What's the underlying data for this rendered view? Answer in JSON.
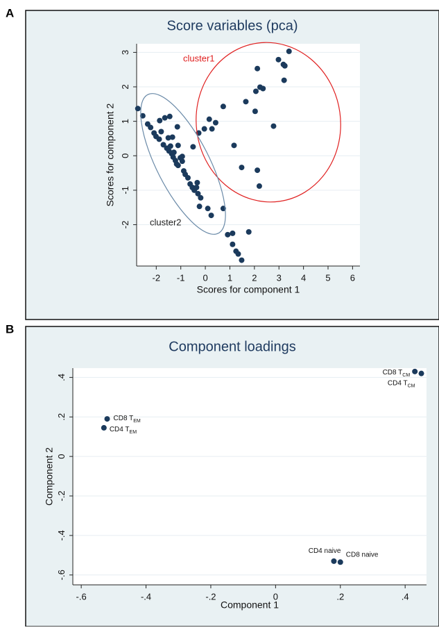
{
  "chart_data": [
    {
      "type": "scatter",
      "panel_label": "A",
      "title": "Score variables (pca)",
      "xlabel": "Scores for component 1",
      "ylabel": "Scores for component 2",
      "color": "#1b3a5c",
      "x": [
        -2.75,
        -2.55,
        -2.35,
        -2.23,
        -2.09,
        -2.01,
        -1.88,
        -1.8,
        -1.65,
        -1.45,
        -1.86,
        -1.71,
        -1.57,
        -1.51,
        -1.42,
        -1.48,
        -1.37,
        -1.28,
        -1.31,
        -1.22,
        -1.17,
        -1.11,
        -1.02,
        -0.94,
        -1.14,
        -0.88,
        -0.82,
        -0.71,
        -0.62,
        -0.53,
        -0.45,
        -0.36,
        -0.33,
        -0.3,
        -0.19,
        -0.24,
        0.1,
        0.24,
        0.73,
        -1.34,
        -1.11,
        -0.94,
        -0.5,
        -0.27,
        -0.04,
        0.16,
        0.27,
        0.42,
        0.73,
        1.17,
        1.48,
        1.65,
        2.03,
        2.06,
        2.12,
        2.23,
        2.35,
        2.12,
        2.2,
        2.78,
        2.98,
        3.18,
        3.24,
        3.21,
        3.41,
        0.91,
        1.11,
        1.11,
        1.25,
        1.34,
        1.48,
        1.77
      ],
      "values": [
        1.37,
        1.16,
        0.92,
        0.82,
        0.66,
        0.56,
        0.48,
        0.7,
        1.1,
        1.14,
        1.02,
        0.32,
        0.22,
        0.52,
        0.28,
        0.14,
        0.06,
        0.1,
        -0.04,
        -0.14,
        -0.24,
        -0.28,
        -0.06,
        -0.16,
        0.84,
        -0.44,
        -0.54,
        -0.64,
        -0.82,
        -0.92,
        -1.0,
        -0.92,
        -0.78,
        -1.1,
        -1.22,
        -1.47,
        -1.53,
        -1.73,
        -1.53,
        0.54,
        0.3,
        -0.02,
        0.26,
        0.66,
        0.78,
        1.06,
        0.78,
        0.96,
        1.43,
        0.3,
        -0.34,
        1.57,
        1.29,
        1.87,
        2.53,
        1.99,
        1.95,
        -0.42,
        -0.88,
        0.86,
        2.79,
        2.65,
        2.61,
        2.19,
        3.03,
        -2.29,
        -2.25,
        -2.57,
        -2.77,
        -2.85,
        -3.03,
        -2.21
      ],
      "xlim": [
        -2.8,
        6.3
      ],
      "ylim": [
        -3.2,
        3.25
      ],
      "xticks": [
        -2,
        -1,
        0,
        1,
        2,
        3,
        4,
        5,
        6
      ],
      "yticks": [
        -2,
        -1,
        0,
        1,
        2,
        3
      ],
      "grid": true,
      "annotations": [
        {
          "text": "cluster1",
          "color": "#e02020"
        },
        {
          "text": "cluster2",
          "color": "#222222"
        }
      ]
    },
    {
      "type": "scatter",
      "panel_label": "B",
      "title": "Component loadings",
      "xlabel": "Component 1",
      "ylabel": "Component 2",
      "color": "#1b3a5c",
      "x": [
        0.43,
        0.45,
        -0.52,
        -0.53,
        0.18,
        0.2
      ],
      "values": [
        0.43,
        0.42,
        0.19,
        0.145,
        -0.53,
        -0.535
      ],
      "point_labels": [
        {
          "text": "CD8 T",
          "sub": "CM"
        },
        {
          "text": "CD4 T",
          "sub": "CM"
        },
        {
          "text": "CD8 T",
          "sub": "EM"
        },
        {
          "text": "CD4 T",
          "sub": "EM"
        },
        {
          "text": "CD4 naive"
        },
        {
          "text": "CD8 naive"
        }
      ],
      "xlim": [
        -0.626,
        0.466
      ],
      "ylim": [
        -0.65,
        0.447
      ],
      "xticks": [
        {
          "value": -0.6,
          "label": "-.6"
        },
        {
          "value": -0.4,
          "label": "-.4"
        },
        {
          "value": -0.2,
          "label": "-.2"
        },
        0,
        {
          "value": 0.2,
          "label": ".2"
        },
        {
          "value": 0.4,
          "label": ".4"
        }
      ],
      "yticks": [
        {
          "value": -0.6,
          "label": "-.6"
        },
        {
          "value": -0.4,
          "label": "-.4"
        },
        {
          "value": -0.2,
          "label": "-.2"
        },
        0,
        {
          "value": 0.2,
          "label": ".2"
        },
        {
          "value": 0.4,
          "label": ".4"
        }
      ],
      "grid": true
    }
  ]
}
